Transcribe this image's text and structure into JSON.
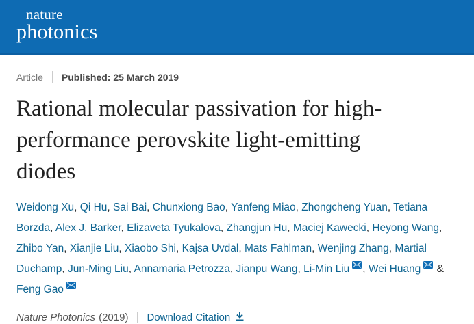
{
  "header": {
    "brand_line1": "nature",
    "brand_line2": "photonics"
  },
  "meta": {
    "article_type": "Article",
    "published": "Published: 25 March 2019"
  },
  "title": "Rational molecular passivation for high-performance perovskite light-emitting diodes",
  "title_lines": [
    "Rational molecular passivation for high-",
    "performance perovskite light-emitting",
    "diodes"
  ],
  "authors": {
    "list": [
      {
        "name": "Weidong Xu"
      },
      {
        "name": "Qi Hu"
      },
      {
        "name": "Sai Bai"
      },
      {
        "name": "Chunxiong Bao"
      },
      {
        "name": "Yanfeng Miao"
      },
      {
        "name": "Zhongcheng Yuan"
      },
      {
        "name": "Tetiana Borzda"
      },
      {
        "name": "Alex J. Barker"
      },
      {
        "name": "Elizaveta Tyukalova",
        "underlined": true
      },
      {
        "name": "Zhangjun Hu"
      },
      {
        "name": "Maciej Kawecki"
      },
      {
        "name": "Heyong Wang"
      },
      {
        "name": "Zhibo Yan"
      },
      {
        "name": "Xianjie Liu"
      },
      {
        "name": "Xiaobo Shi"
      },
      {
        "name": "Kajsa Uvdal"
      },
      {
        "name": "Mats Fahlman"
      },
      {
        "name": "Wenjing Zhang"
      },
      {
        "name": "Martial Duchamp"
      },
      {
        "name": "Jun-Ming Liu"
      },
      {
        "name": "Annamaria Petrozza"
      },
      {
        "name": "Jianpu Wang"
      },
      {
        "name": "Li-Min Liu",
        "email_icon": true
      },
      {
        "name": "Wei Huang",
        "email_icon": true
      },
      {
        "name": "Feng Gao",
        "email_icon": true
      }
    ],
    "separator": ", ",
    "last_separator": " & "
  },
  "citation": {
    "journal": "Nature Photonics",
    "year": "(2019)",
    "download_label": "Download Citation"
  },
  "icons": {
    "email_icon": "envelope",
    "download_icon": "arrow-down-to-line"
  },
  "colors": {
    "header_bg": "#0e6bb3",
    "link_blue": "#0f6592",
    "title_text": "#222222",
    "muted_gray": "#777777"
  }
}
